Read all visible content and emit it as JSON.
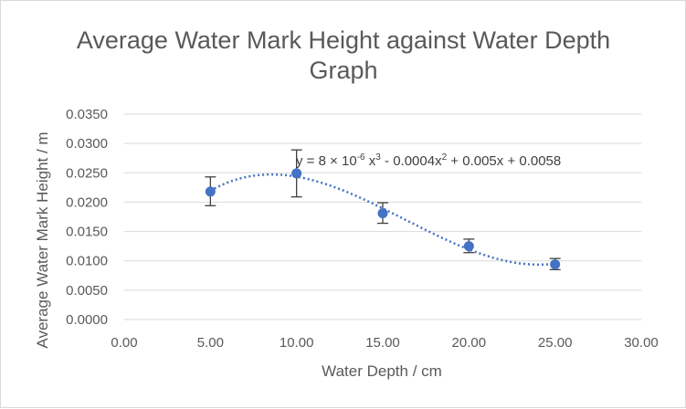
{
  "chart_data": {
    "type": "scatter",
    "title_line1": "Average Water Mark Height against Water Depth",
    "title_line2": "Graph",
    "xlabel": "Water Depth / cm",
    "ylabel": "Average Water Mark Height / m",
    "xlim": [
      0,
      30
    ],
    "ylim": [
      0,
      0.035
    ],
    "x_ticks": [
      "0.00",
      "5.00",
      "10.00",
      "15.00",
      "20.00",
      "25.00",
      "30.00"
    ],
    "y_ticks": [
      "0.0000",
      "0.0050",
      "0.0100",
      "0.0150",
      "0.0200",
      "0.0250",
      "0.0300",
      "0.0350"
    ],
    "grid": "horizontal",
    "series": [
      {
        "x": [
          5,
          10,
          15,
          20,
          25
        ],
        "y": [
          0.0218,
          0.0249,
          0.0181,
          0.0125,
          0.0094
        ],
        "error_low": [
          0.0194,
          0.0209,
          0.0164,
          0.0114,
          0.0085
        ],
        "error_high": [
          0.0243,
          0.0289,
          0.0199,
          0.0137,
          0.0104
        ],
        "color": "#4472c4"
      }
    ],
    "trendline": {
      "type": "polynomial",
      "order": 3,
      "style": "dotted",
      "color": "#4472c4",
      "equation_parts": {
        "prefix": "y = 8 × 10",
        "exp1": "-6",
        "part2": " x",
        "exp2": "3",
        "part3": " - 0.0004x",
        "exp3": "2",
        "part4": " + 0.005x + 0.0058"
      }
    }
  }
}
